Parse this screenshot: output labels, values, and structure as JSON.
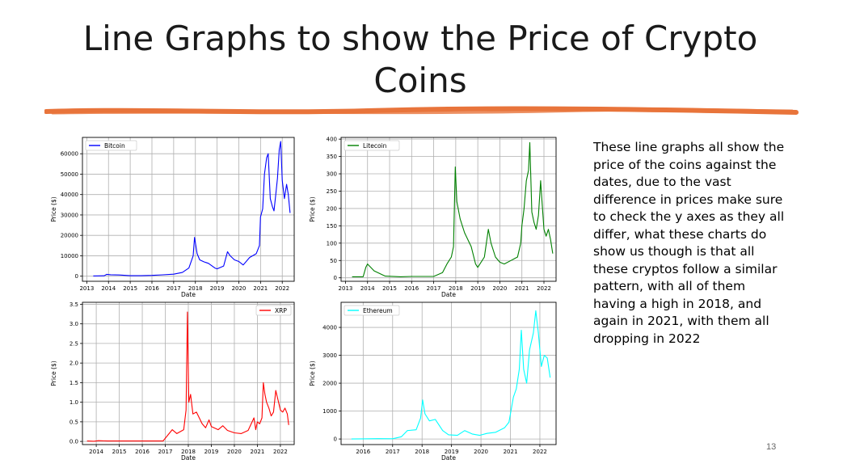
{
  "slide": {
    "title": "Line Graphs to show the Price of Crypto Coins",
    "description": "These line graphs all show the price of the coins against the dates, due to the vast difference in prices make sure to check the y axes as they all differ, what these charts do show us though is that all these cryptos follow a similar pattern, with all of them having a high in 2018, and again in 2021, with them all dropping in 2022",
    "page_number": "13",
    "rule_color": "#e8743b"
  },
  "chart_data": [
    {
      "type": "line",
      "xlabel": "Date",
      "ylabel": "Price ($)",
      "xticks": [
        2013,
        2014,
        2015,
        2016,
        2017,
        2018,
        2019,
        2020,
        2021,
        2022
      ],
      "xlim": [
        2012.8,
        2022.55
      ],
      "yticks": [
        0,
        10000,
        20000,
        30000,
        40000,
        50000,
        60000
      ],
      "ylim": [
        -2500,
        68000
      ],
      "grid": true,
      "legend": "top-left",
      "series": [
        {
          "name": "Bitcoin",
          "color": "#0000ff",
          "x": [
            2013.3,
            2013.8,
            2013.92,
            2014.1,
            2014.5,
            2015.0,
            2015.5,
            2016.0,
            2016.5,
            2017.0,
            2017.4,
            2017.7,
            2017.9,
            2017.96,
            2018.08,
            2018.2,
            2018.4,
            2018.6,
            2018.9,
            2019.0,
            2019.3,
            2019.48,
            2019.6,
            2019.8,
            2020.0,
            2020.2,
            2020.5,
            2020.8,
            2020.95,
            2021.0,
            2021.1,
            2021.18,
            2021.28,
            2021.35,
            2021.45,
            2021.55,
            2021.62,
            2021.7,
            2021.78,
            2021.86,
            2021.93,
            2022.0,
            2022.1,
            2022.2,
            2022.28,
            2022.36
          ],
          "y": [
            100,
            200,
            900,
            700,
            600,
            250,
            250,
            400,
            650,
            1000,
            1800,
            4000,
            10000,
            19000,
            11000,
            8000,
            7000,
            6300,
            4000,
            3600,
            5000,
            12000,
            10000,
            8000,
            7200,
            5500,
            9200,
            11000,
            15000,
            29000,
            33000,
            50000,
            58000,
            60000,
            38000,
            34000,
            32000,
            40000,
            48000,
            62000,
            66000,
            47000,
            38000,
            45000,
            40000,
            31000
          ]
        }
      ]
    },
    {
      "type": "line",
      "xlabel": "Date",
      "ylabel": "Price ($)",
      "xticks": [
        2013,
        2014,
        2015,
        2016,
        2017,
        2018,
        2019,
        2020,
        2021,
        2022
      ],
      "xlim": [
        2012.8,
        2022.55
      ],
      "yticks": [
        0,
        50,
        100,
        150,
        200,
        250,
        300,
        350,
        400
      ],
      "ylim": [
        -10,
        405
      ],
      "grid": true,
      "legend": "top-left",
      "series": [
        {
          "name": "Litecoin",
          "color": "#008000",
          "x": [
            2013.3,
            2013.8,
            2013.92,
            2014.0,
            2014.3,
            2014.8,
            2015.5,
            2016.0,
            2017.0,
            2017.4,
            2017.6,
            2017.8,
            2017.9,
            2017.98,
            2018.05,
            2018.2,
            2018.4,
            2018.7,
            2018.9,
            2019.0,
            2019.3,
            2019.48,
            2019.6,
            2019.8,
            2020.0,
            2020.2,
            2020.5,
            2020.8,
            2020.95,
            2021.0,
            2021.1,
            2021.2,
            2021.3,
            2021.36,
            2021.45,
            2021.55,
            2021.65,
            2021.75,
            2021.85,
            2021.9,
            2022.0,
            2022.1,
            2022.2,
            2022.3,
            2022.4
          ],
          "y": [
            3,
            3,
            30,
            40,
            20,
            5,
            3,
            4,
            4,
            15,
            40,
            60,
            90,
            320,
            220,
            170,
            130,
            90,
            40,
            30,
            60,
            140,
            100,
            60,
            45,
            40,
            50,
            60,
            100,
            150,
            200,
            280,
            310,
            390,
            190,
            160,
            140,
            180,
            280,
            230,
            140,
            120,
            140,
            110,
            70
          ]
        }
      ]
    },
    {
      "type": "line",
      "xlabel": "Date",
      "ylabel": "Price ($)",
      "xticks": [
        2014,
        2015,
        2016,
        2017,
        2018,
        2019,
        2020,
        2021,
        2022
      ],
      "xlim": [
        2013.4,
        2022.6
      ],
      "yticks": [
        0.0,
        0.5,
        1.0,
        1.5,
        2.0,
        2.5,
        3.0,
        3.5
      ],
      "ylim": [
        -0.08,
        3.55
      ],
      "grid": true,
      "legend": "top-right",
      "series": [
        {
          "name": "XRP",
          "color": "#ff0000",
          "x": [
            2013.6,
            2013.9,
            2014.1,
            2014.5,
            2015.0,
            2016.0,
            2016.9,
            2017.3,
            2017.5,
            2017.8,
            2017.9,
            2017.96,
            2018.02,
            2018.1,
            2018.2,
            2018.35,
            2018.6,
            2018.75,
            2018.9,
            2019.0,
            2019.3,
            2019.5,
            2019.7,
            2020.0,
            2020.3,
            2020.6,
            2020.85,
            2020.93,
            2021.0,
            2021.1,
            2021.2,
            2021.26,
            2021.33,
            2021.4,
            2021.5,
            2021.6,
            2021.7,
            2021.8,
            2021.9,
            2022.0,
            2022.1,
            2022.2,
            2022.3,
            2022.36
          ],
          "y": [
            0.01,
            0.005,
            0.02,
            0.01,
            0.01,
            0.01,
            0.01,
            0.3,
            0.2,
            0.3,
            0.8,
            3.3,
            1.0,
            1.2,
            0.7,
            0.75,
            0.45,
            0.35,
            0.55,
            0.38,
            0.3,
            0.4,
            0.28,
            0.22,
            0.2,
            0.28,
            0.6,
            0.3,
            0.5,
            0.45,
            0.6,
            1.5,
            1.2,
            1.0,
            0.85,
            0.65,
            0.75,
            1.3,
            1.05,
            0.8,
            0.75,
            0.85,
            0.7,
            0.42
          ]
        }
      ]
    },
    {
      "type": "line",
      "xlabel": "Date",
      "ylabel": "Price ($)",
      "xticks": [
        2016,
        2017,
        2018,
        2019,
        2020,
        2021,
        2022
      ],
      "xlim": [
        2015.25,
        2022.55
      ],
      "yticks": [
        0,
        1000,
        2000,
        3000,
        4000
      ],
      "ylim": [
        -200,
        4900
      ],
      "grid": true,
      "legend": "top-left",
      "series": [
        {
          "name": "Ethereum",
          "color": "#00ffff",
          "x": [
            2015.6,
            2016.0,
            2016.5,
            2017.0,
            2017.3,
            2017.5,
            2017.8,
            2017.95,
            2018.02,
            2018.1,
            2018.25,
            2018.45,
            2018.7,
            2018.9,
            2019.2,
            2019.45,
            2019.7,
            2019.95,
            2020.2,
            2020.5,
            2020.8,
            2020.95,
            2021.1,
            2021.2,
            2021.3,
            2021.37,
            2021.45,
            2021.55,
            2021.65,
            2021.78,
            2021.86,
            2021.95,
            2022.05,
            2022.15,
            2022.25,
            2022.35
          ],
          "y": [
            1,
            5,
            12,
            10,
            80,
            300,
            330,
            750,
            1400,
            900,
            650,
            700,
            300,
            150,
            130,
            300,
            180,
            130,
            200,
            240,
            400,
            600,
            1500,
            1800,
            2500,
            3900,
            2500,
            2000,
            3200,
            3800,
            4600,
            3800,
            2600,
            3000,
            2900,
            2200
          ]
        }
      ]
    }
  ]
}
